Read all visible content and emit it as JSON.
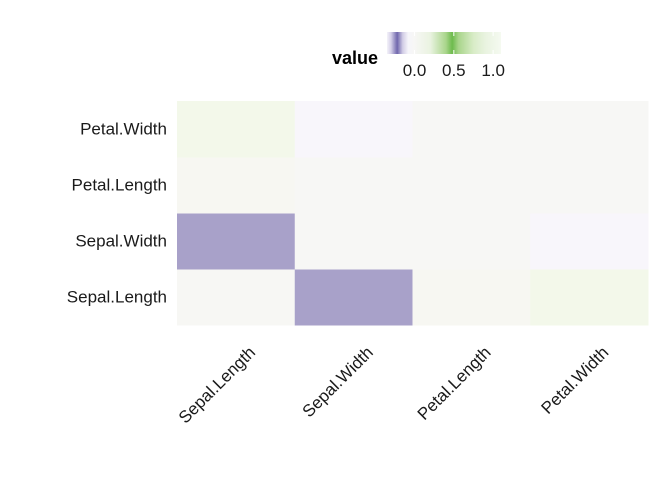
{
  "chart_data": {
    "type": "heatmap",
    "x_categories": [
      "Sepal.Length",
      "Sepal.Width",
      "Petal.Length",
      "Petal.Width"
    ],
    "y_categories": [
      "Sepal.Length",
      "Sepal.Width",
      "Petal.Length",
      "Petal.Width"
    ],
    "cells": [
      {
        "x": "Sepal.Length",
        "y": "Sepal.Length",
        "value": 0.0,
        "color": "#f7f7f4"
      },
      {
        "x": "Sepal.Width",
        "y": "Sepal.Length",
        "value": -0.9,
        "color": "#a8a1c9"
      },
      {
        "x": "Petal.Length",
        "y": "Sepal.Length",
        "value": 0.02,
        "color": "#f7f7f2"
      },
      {
        "x": "Petal.Width",
        "y": "Sepal.Length",
        "value": 0.15,
        "color": "#f3f8ea"
      },
      {
        "x": "Sepal.Length",
        "y": "Sepal.Width",
        "value": -0.9,
        "color": "#a8a1c9"
      },
      {
        "x": "Sepal.Width",
        "y": "Sepal.Width",
        "value": 0.0,
        "color": "#f7f7f5"
      },
      {
        "x": "Petal.Length",
        "y": "Sepal.Width",
        "value": 0.0,
        "color": "#f7f7f5"
      },
      {
        "x": "Petal.Width",
        "y": "Sepal.Width",
        "value": -0.05,
        "color": "#f8f6fb"
      },
      {
        "x": "Sepal.Length",
        "y": "Petal.Length",
        "value": 0.02,
        "color": "#f7f7f2"
      },
      {
        "x": "Sepal.Width",
        "y": "Petal.Length",
        "value": 0.0,
        "color": "#f7f7f5"
      },
      {
        "x": "Petal.Length",
        "y": "Petal.Length",
        "value": 0.0,
        "color": "#f7f7f5"
      },
      {
        "x": "Petal.Width",
        "y": "Petal.Length",
        "value": 0.0,
        "color": "#f7f7f5"
      },
      {
        "x": "Sepal.Length",
        "y": "Petal.Width",
        "value": 0.15,
        "color": "#f3f8ea"
      },
      {
        "x": "Sepal.Width",
        "y": "Petal.Width",
        "value": -0.05,
        "color": "#f8f6fb"
      },
      {
        "x": "Petal.Length",
        "y": "Petal.Width",
        "value": 0.0,
        "color": "#f7f7f5"
      },
      {
        "x": "Petal.Width",
        "y": "Petal.Width",
        "value": 0.0,
        "color": "#f7f7f5"
      }
    ],
    "legend": {
      "title": "value",
      "position": "top",
      "ticks": [
        {
          "label": "0.0",
          "value": 0.0
        },
        {
          "label": "0.5",
          "value": 0.5
        },
        {
          "label": "1.0",
          "value": 1.0
        }
      ],
      "range": [
        -0.35,
        1.1
      ],
      "gradient": [
        {
          "value": -0.35,
          "color": "#f4f2f9"
        },
        {
          "value": -0.3,
          "color": "#d6d1e9"
        },
        {
          "value": -0.22,
          "color": "#7067ad"
        },
        {
          "value": -0.15,
          "color": "#d2cde6"
        },
        {
          "value": -0.08,
          "color": "#f6f5fa"
        },
        {
          "value": 0.0,
          "color": "#f7f7f5"
        },
        {
          "value": 0.2,
          "color": "#eaf3e1"
        },
        {
          "value": 0.4,
          "color": "#a9d58b"
        },
        {
          "value": 0.48,
          "color": "#6dbb4d"
        },
        {
          "value": 0.56,
          "color": "#a9d58b"
        },
        {
          "value": 0.75,
          "color": "#d8ecc7"
        },
        {
          "value": 0.9,
          "color": "#e9f3e0"
        },
        {
          "value": 1.1,
          "color": "#f5faf1"
        }
      ]
    },
    "xlabel": "",
    "ylabel": "",
    "grid": false
  }
}
